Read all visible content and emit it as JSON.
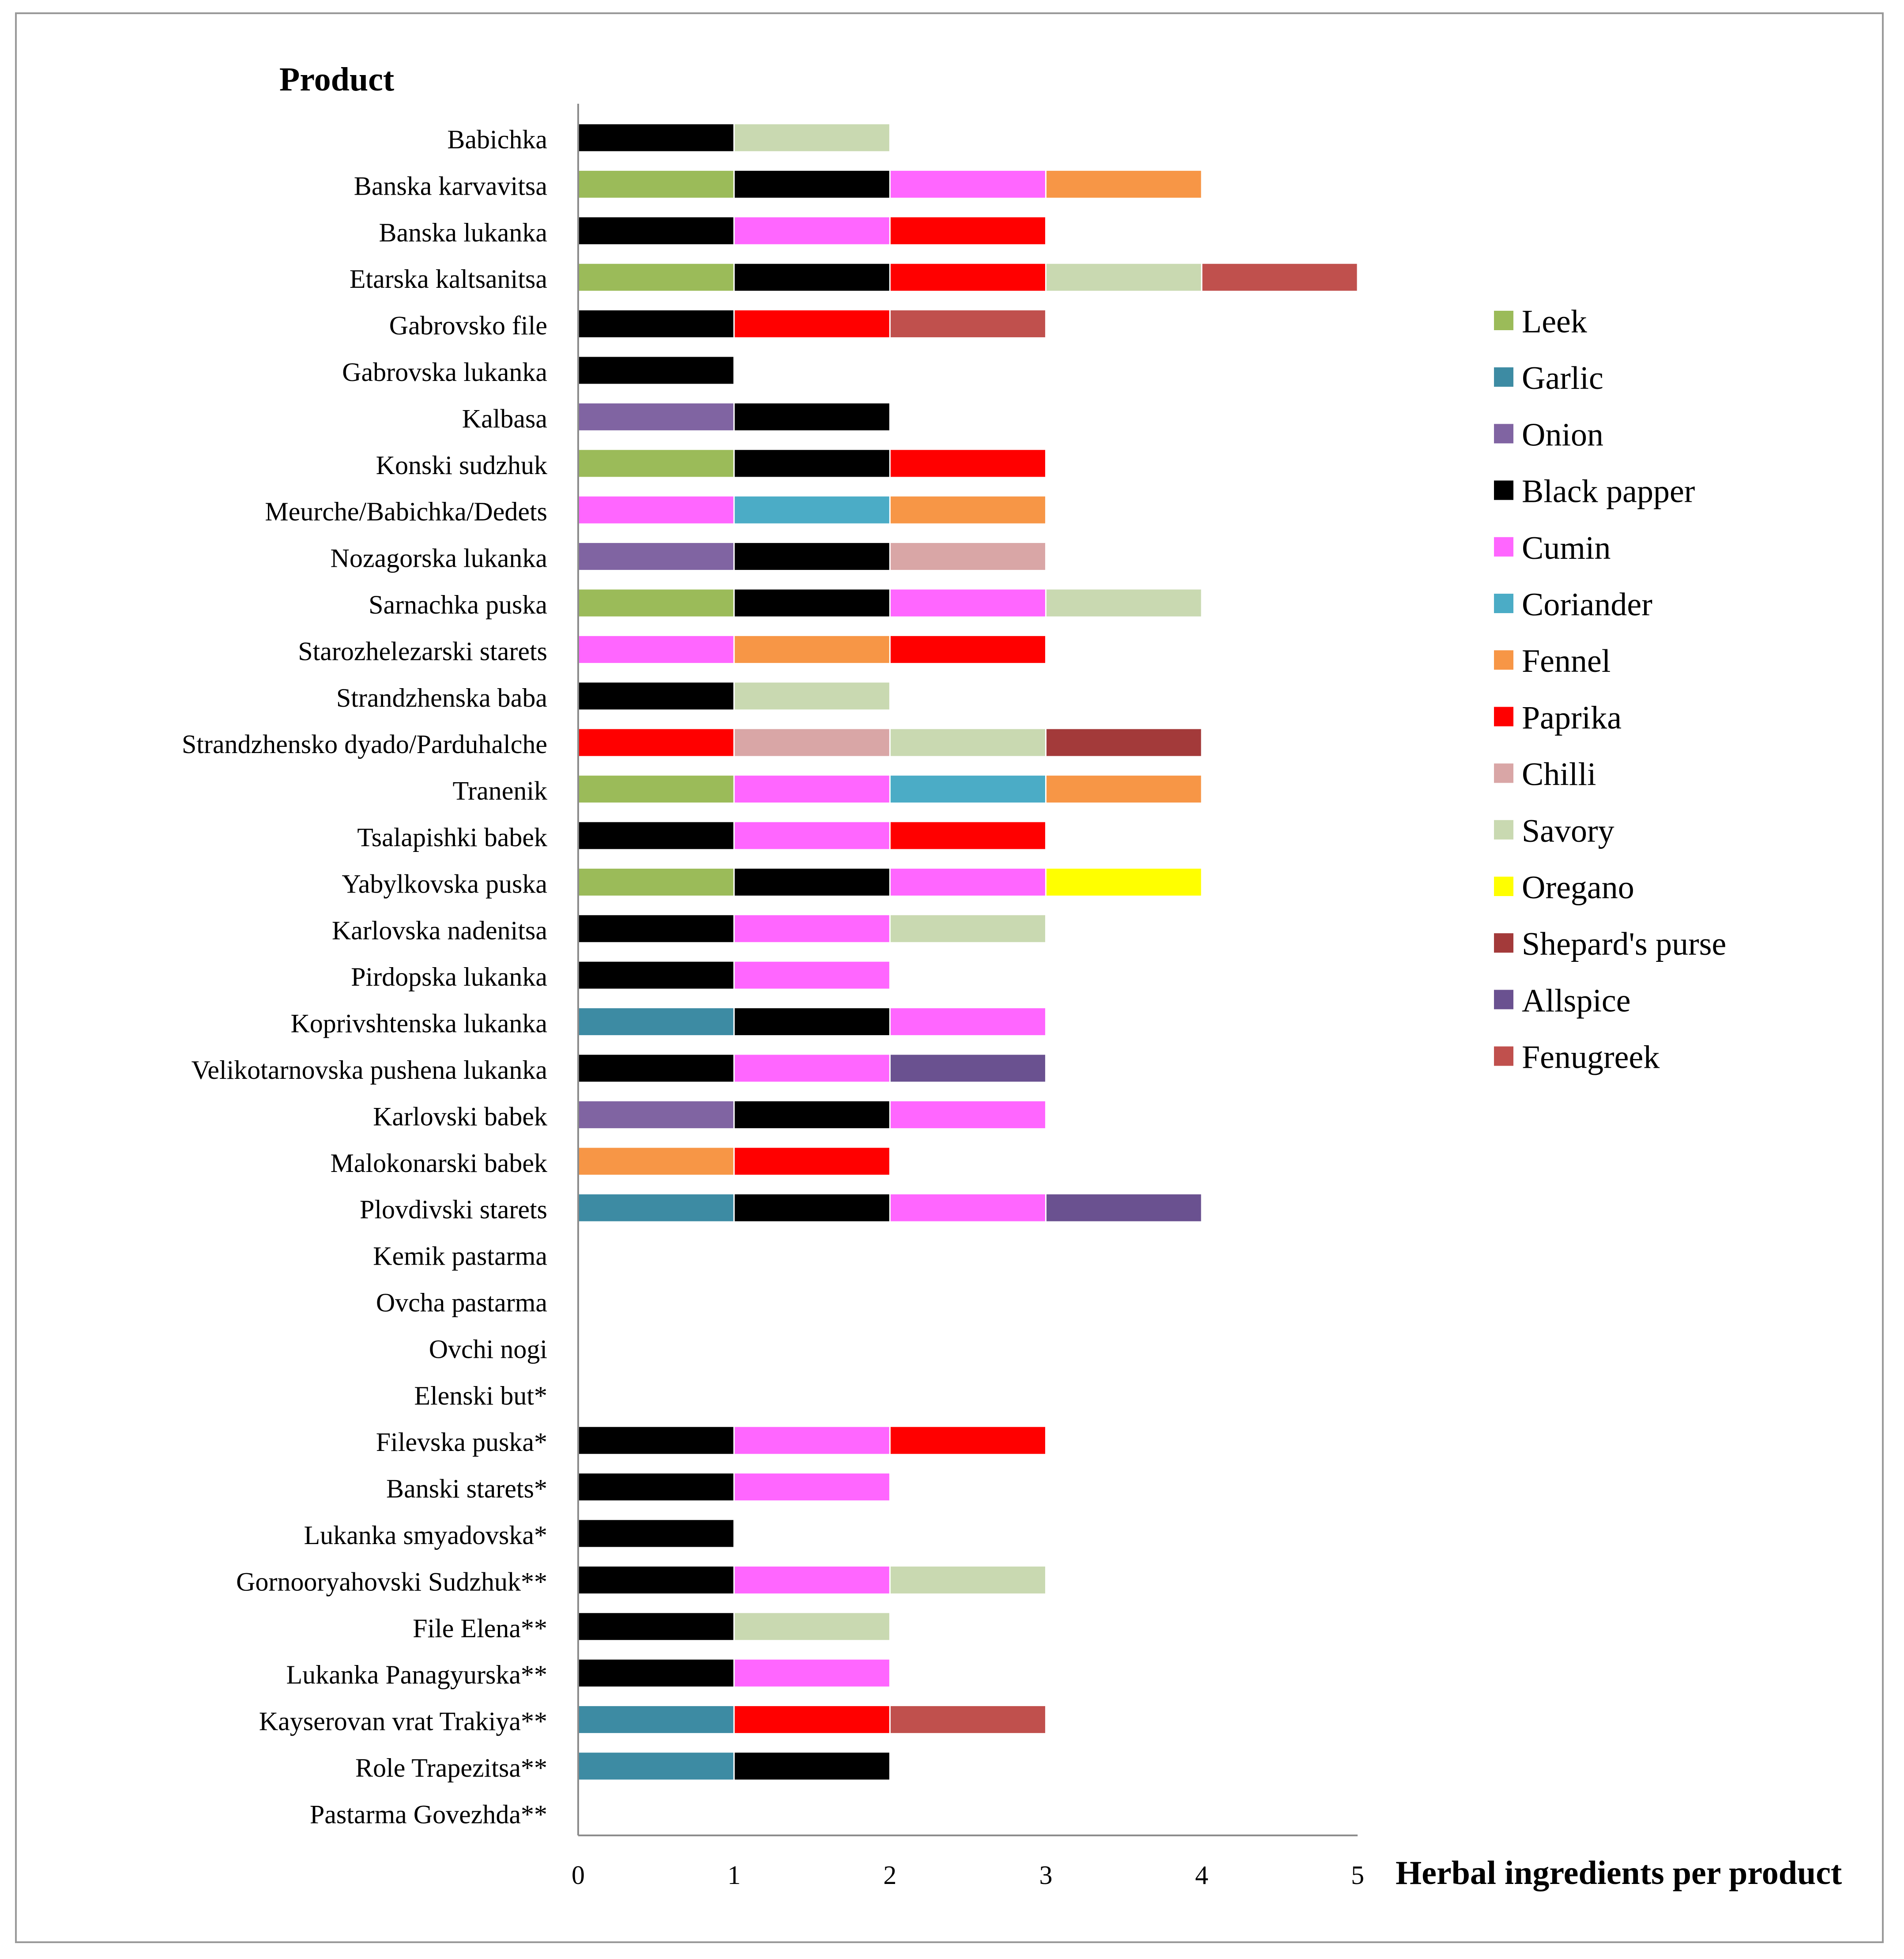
{
  "chart_data": {
    "type": "bar",
    "stacked": true,
    "orientation": "horizontal",
    "ylabel": "Product",
    "xlabel": "Herbal ingredients per product",
    "xlim": [
      0,
      5
    ],
    "xticks": [
      "0",
      "1",
      "2",
      "3",
      "4",
      "5"
    ],
    "grid": false,
    "legend_position": "right",
    "ingredients": [
      {
        "name": "Leek",
        "color": "#9BBB59"
      },
      {
        "name": "Garlic",
        "color": "#3D8BA3"
      },
      {
        "name": "Onion",
        "color": "#8064A2"
      },
      {
        "name": "Black papper",
        "color": "#000000"
      },
      {
        "name": "Cumin",
        "color": "#FF66FF"
      },
      {
        "name": "Coriander",
        "color": "#4BACC6"
      },
      {
        "name": "Fennel",
        "color": "#F79646"
      },
      {
        "name": "Paprika",
        "color": "#FF0000"
      },
      {
        "name": "Chilli",
        "color": "#D9A6A6"
      },
      {
        "name": "Savory",
        "color": "#C9D9B1"
      },
      {
        "name": "Oregano",
        "color": "#FFFF00"
      },
      {
        "name": "Shepard's purse",
        "color": "#A33A3A"
      },
      {
        "name": "Allspice",
        "color": "#6A5190"
      },
      {
        "name": "Fenugreek",
        "color": "#C0504D"
      }
    ],
    "products": [
      {
        "name": "Babichka",
        "ingredients": [
          "Black papper",
          "Savory"
        ]
      },
      {
        "name": "Banska karvavitsa",
        "ingredients": [
          "Leek",
          "Black papper",
          "Cumin",
          "Fennel"
        ]
      },
      {
        "name": "Banska lukanka",
        "ingredients": [
          "Black papper",
          "Cumin",
          "Paprika"
        ]
      },
      {
        "name": "Etarska kaltsanitsa",
        "ingredients": [
          "Leek",
          "Black papper",
          "Paprika",
          "Savory",
          "Fenugreek"
        ]
      },
      {
        "name": "Gabrovsko file",
        "ingredients": [
          "Black papper",
          "Paprika",
          "Fenugreek"
        ]
      },
      {
        "name": "Gabrovska lukanka",
        "ingredients": [
          "Black papper"
        ]
      },
      {
        "name": "Kalbasa",
        "ingredients": [
          "Onion",
          "Black papper"
        ]
      },
      {
        "name": "Konski sudzhuk",
        "ingredients": [
          "Leek",
          "Black papper",
          "Paprika"
        ]
      },
      {
        "name": "Meurche/Babichka/Dedets",
        "ingredients": [
          "Cumin",
          "Coriander",
          "Fennel"
        ]
      },
      {
        "name": "Nozagorska lukanka",
        "ingredients": [
          "Onion",
          "Black papper",
          "Chilli"
        ]
      },
      {
        "name": "Sarnachka puska",
        "ingredients": [
          "Leek",
          "Black papper",
          "Cumin",
          "Savory"
        ]
      },
      {
        "name": "Starozhelezarski starets",
        "ingredients": [
          "Cumin",
          "Fennel",
          "Paprika"
        ]
      },
      {
        "name": "Strandzhenska baba",
        "ingredients": [
          "Black papper",
          "Savory"
        ]
      },
      {
        "name": "Strandzhensko dyado/Parduhalche",
        "ingredients": [
          "Paprika",
          "Chilli",
          "Savory",
          "Shepard's purse"
        ]
      },
      {
        "name": "Tranenik",
        "ingredients": [
          "Leek",
          "Cumin",
          "Coriander",
          "Fennel"
        ]
      },
      {
        "name": "Tsalapishki babek",
        "ingredients": [
          "Black papper",
          "Cumin",
          "Paprika"
        ]
      },
      {
        "name": "Yabylkovska puska",
        "ingredients": [
          "Leek",
          "Black papper",
          "Cumin",
          "Oregano"
        ]
      },
      {
        "name": "Karlovska nadenitsa",
        "ingredients": [
          "Black papper",
          "Cumin",
          "Savory"
        ]
      },
      {
        "name": "Pirdopska lukanka",
        "ingredients": [
          "Black papper",
          "Cumin"
        ]
      },
      {
        "name": "Koprivshtenska lukanka",
        "ingredients": [
          "Garlic",
          "Black papper",
          "Cumin"
        ]
      },
      {
        "name": "Velikotarnovska pushena lukanka",
        "ingredients": [
          "Black papper",
          "Cumin",
          "Allspice"
        ]
      },
      {
        "name": "Karlovski babek",
        "ingredients": [
          "Onion",
          "Black papper",
          "Cumin"
        ]
      },
      {
        "name": "Malokonarski babek",
        "ingredients": [
          "Fennel",
          "Paprika"
        ]
      },
      {
        "name": "Plovdivski starets",
        "ingredients": [
          "Garlic",
          "Black papper",
          "Cumin",
          "Allspice"
        ]
      },
      {
        "name": "Kemik pastarma",
        "ingredients": []
      },
      {
        "name": "Ovcha pastarma",
        "ingredients": []
      },
      {
        "name": "Ovchi nogi",
        "ingredients": []
      },
      {
        "name": "Elenski but*",
        "ingredients": []
      },
      {
        "name": "Filevska puska*",
        "ingredients": [
          "Black papper",
          "Cumin",
          "Paprika"
        ]
      },
      {
        "name": "Banski starets*",
        "ingredients": [
          "Black papper",
          "Cumin"
        ]
      },
      {
        "name": "Lukanka smyadovska*",
        "ingredients": [
          "Black papper"
        ]
      },
      {
        "name": "Gornooryahovski Sudzhuk**",
        "ingredients": [
          "Black papper",
          "Cumin",
          "Savory"
        ]
      },
      {
        "name": "File Elena**",
        "ingredients": [
          "Black papper",
          "Savory"
        ]
      },
      {
        "name": "Lukanka Panagyurska**",
        "ingredients": [
          "Black papper",
          "Cumin"
        ]
      },
      {
        "name": "Kayserovan vrat Trakiya**",
        "ingredients": [
          "Garlic",
          "Paprika",
          "Fenugreek"
        ]
      },
      {
        "name": "Role Trapezitsa**",
        "ingredients": [
          "Garlic",
          "Black papper"
        ]
      },
      {
        "name": "Pastarma Govezhda**",
        "ingredients": []
      }
    ]
  }
}
